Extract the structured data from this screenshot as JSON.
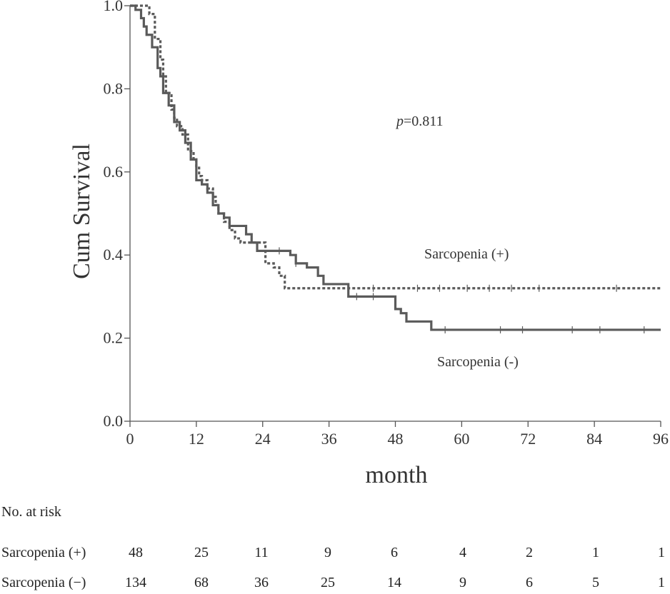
{
  "chart_data": {
    "type": "line",
    "subtype": "kaplan-meier",
    "title": "",
    "xlabel": "month",
    "ylabel": "Cum Survival",
    "xlim": [
      0,
      96
    ],
    "ylim": [
      0.0,
      1.0
    ],
    "x_ticks": [
      "0",
      "12",
      "24",
      "36",
      "48",
      "60",
      "72",
      "84",
      "96"
    ],
    "y_ticks": [
      "0.0",
      "0.2",
      "0.4",
      "0.6",
      "0.8",
      "1.0"
    ],
    "annotation": {
      "italic": "p",
      "text": "=0.811"
    },
    "series": [
      {
        "name": "Sarcopenia (+)",
        "style": "dotted",
        "color": "#5a5a5a",
        "steps": [
          [
            0,
            1.0
          ],
          [
            3.5,
            0.98
          ],
          [
            4.5,
            0.92
          ],
          [
            5.5,
            0.87
          ],
          [
            6,
            0.83
          ],
          [
            6.5,
            0.79
          ],
          [
            7.5,
            0.75
          ],
          [
            8,
            0.73
          ],
          [
            8.5,
            0.71
          ],
          [
            9.5,
            0.69
          ],
          [
            10.5,
            0.65
          ],
          [
            11.5,
            0.63
          ],
          [
            12,
            0.61
          ],
          [
            12.5,
            0.59
          ],
          [
            13,
            0.58
          ],
          [
            14,
            0.56
          ],
          [
            15,
            0.54
          ],
          [
            15.5,
            0.52
          ],
          [
            16,
            0.5
          ],
          [
            17,
            0.48
          ],
          [
            18,
            0.46
          ],
          [
            19,
            0.44
          ],
          [
            20,
            0.43
          ],
          [
            24,
            0.43
          ],
          [
            24.5,
            0.38
          ],
          [
            26,
            0.37
          ],
          [
            27,
            0.35
          ],
          [
            28,
            0.32
          ],
          [
            96,
            0.32
          ]
        ],
        "censor_x": [
          44,
          52,
          56,
          61,
          65,
          69,
          74,
          88
        ]
      },
      {
        "name": "Sarcopenia (-)",
        "style": "solid",
        "color": "#5a5a5a",
        "steps": [
          [
            0,
            1.0
          ],
          [
            1,
            0.99
          ],
          [
            2,
            0.97
          ],
          [
            2.5,
            0.95
          ],
          [
            3,
            0.93
          ],
          [
            4,
            0.9
          ],
          [
            5,
            0.85
          ],
          [
            5.5,
            0.83
          ],
          [
            6,
            0.79
          ],
          [
            7,
            0.76
          ],
          [
            8,
            0.72
          ],
          [
            9,
            0.7
          ],
          [
            10,
            0.67
          ],
          [
            11,
            0.63
          ],
          [
            12,
            0.58
          ],
          [
            13,
            0.57
          ],
          [
            14,
            0.55
          ],
          [
            15,
            0.52
          ],
          [
            16,
            0.5
          ],
          [
            17,
            0.49
          ],
          [
            18,
            0.47
          ],
          [
            20,
            0.47
          ],
          [
            21,
            0.45
          ],
          [
            22,
            0.43
          ],
          [
            23,
            0.41
          ],
          [
            28,
            0.41
          ],
          [
            29,
            0.4
          ],
          [
            30,
            0.38
          ],
          [
            32,
            0.37
          ],
          [
            34,
            0.35
          ],
          [
            35,
            0.33
          ],
          [
            39,
            0.33
          ],
          [
            39.5,
            0.3
          ],
          [
            47,
            0.3
          ],
          [
            48,
            0.27
          ],
          [
            49,
            0.26
          ],
          [
            50,
            0.24
          ],
          [
            54,
            0.24
          ],
          [
            54.5,
            0.22
          ],
          [
            96,
            0.22
          ]
        ],
        "censor_x": [
          27,
          30,
          41,
          44,
          57,
          67,
          71,
          80,
          85,
          93
        ]
      }
    ],
    "labels": [
      {
        "series": "Sarcopenia (+)",
        "text": "Sarcopenia (+)"
      },
      {
        "series": "Sarcopenia (-)",
        "text": "Sarcopenia (-)"
      }
    ]
  },
  "risk_table": {
    "title": "No. at risk",
    "rows": [
      {
        "label": "Sarcopenia (+)",
        "values": [
          "48",
          "25",
          "11",
          "9",
          "6",
          "4",
          "2",
          "1",
          "1"
        ]
      },
      {
        "label": "Sarcopenia (−)",
        "values": [
          "134",
          "68",
          "36",
          "25",
          "14",
          "9",
          "6",
          "5",
          "1"
        ]
      }
    ]
  }
}
